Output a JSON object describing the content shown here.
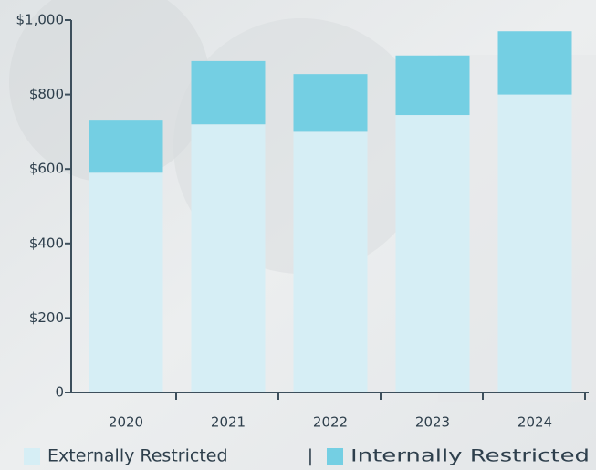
{
  "chart_data": {
    "type": "stacked_bar",
    "categories": [
      "2020",
      "2021",
      "2022",
      "2023",
      "2024"
    ],
    "series": [
      {
        "name": "Externally Restricted",
        "color": "#d6eef5",
        "values": [
          590,
          720,
          700,
          745,
          800
        ]
      },
      {
        "name": "Internally Restricted",
        "color": "#74cfe3",
        "values": [
          140,
          170,
          155,
          160,
          170
        ]
      }
    ],
    "legend_separator": "|",
    "ylim": [
      0,
      1000
    ],
    "yticks": [
      0,
      {
        "value": 200,
        "label": "$200"
      },
      {
        "value": 400,
        "label": "$400"
      },
      {
        "value": 600,
        "label": "$600"
      },
      {
        "value": 800,
        "label": "$800"
      },
      {
        "value": 1000,
        "label": "$1,000"
      }
    ],
    "grid": false,
    "legend": "bottom"
  }
}
